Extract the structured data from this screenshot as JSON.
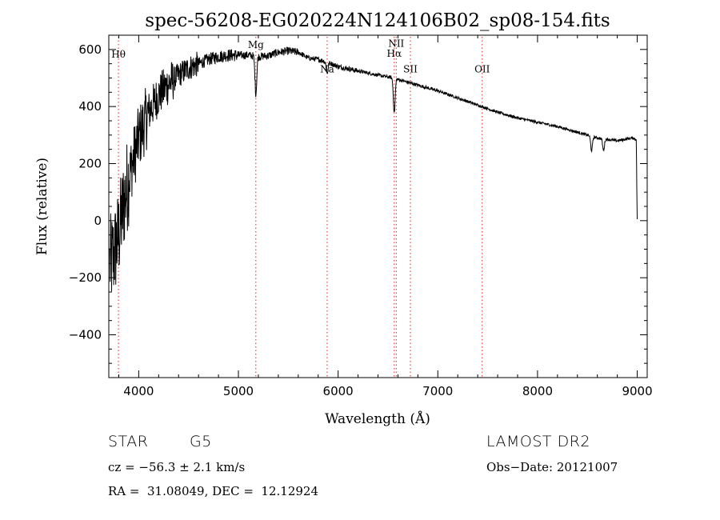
{
  "chart_data": {
    "type": "line",
    "title": "spec-56208-EG020224N124106B02_sp08-154.fits",
    "xlabel": "Wavelength (Å)",
    "ylabel": "Flux (relative)",
    "xlim": [
      3700,
      9100
    ],
    "ylim": [
      -550,
      650
    ],
    "xticks": [
      4000,
      5000,
      6000,
      7000,
      8000,
      9000
    ],
    "yticks": [
      -400,
      -200,
      0,
      200,
      400,
      600
    ],
    "grid": false,
    "line_color": "#000000",
    "marker_color": "#dd2222",
    "spectrum_anchors": {
      "x": [
        3710,
        3750,
        3800,
        3850,
        3900,
        3950,
        4000,
        4100,
        4200,
        4300,
        4400,
        4500,
        4600,
        4700,
        4800,
        4900,
        5000,
        5100,
        5200,
        5300,
        5400,
        5500,
        5600,
        5700,
        5800,
        5900,
        6000,
        6200,
        6400,
        6560,
        6600,
        6800,
        7000,
        7200,
        7400,
        7600,
        7800,
        8000,
        8200,
        8400,
        8600,
        8800,
        8950,
        8990,
        9000
      ],
      "y": [
        -150,
        -120,
        -50,
        60,
        150,
        220,
        290,
        380,
        440,
        480,
        510,
        535,
        550,
        565,
        575,
        580,
        580,
        580,
        575,
        578,
        590,
        595,
        590,
        570,
        565,
        555,
        540,
        525,
        510,
        500,
        495,
        475,
        455,
        430,
        405,
        380,
        360,
        345,
        330,
        310,
        290,
        280,
        290,
        285,
        5
      ]
    },
    "absorption_features": [
      {
        "x": 5175,
        "depth": 130
      },
      {
        "x": 5890,
        "depth": 40
      },
      {
        "x": 6563,
        "depth": 120
      },
      {
        "x": 8542,
        "depth": 50
      },
      {
        "x": 8662,
        "depth": 40
      }
    ],
    "line_markers": [
      {
        "x": 3797,
        "label": "Hθ",
        "label_y": 572
      },
      {
        "x": 5175,
        "label": "Mg",
        "label_y": 605
      },
      {
        "x": 5890,
        "label": "Na",
        "label_y": 520
      },
      {
        "x": 6563,
        "label": "Hα",
        "label_y": 575
      },
      {
        "x": 6583,
        "label": "NII",
        "label_y": 610
      },
      {
        "x": 6725,
        "label": "SII",
        "label_y": 520
      },
      {
        "x": 7445,
        "label": "OII",
        "label_y": 520
      }
    ]
  },
  "info": {
    "object_class": "STAR",
    "subclass": "G5",
    "survey": "LAMOST DR2",
    "redshift": "cz = −56.3 ± 2.1 km/s",
    "obs_date": "Obs−Date: 20121007",
    "coords": "RA =  31.08049, DEC =  12.12924"
  }
}
